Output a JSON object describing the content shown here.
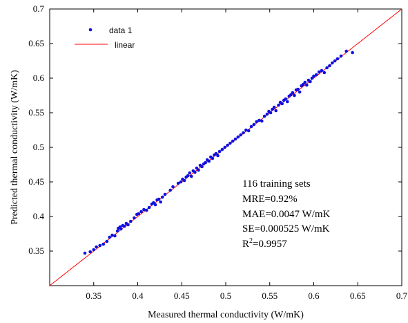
{
  "chart_data": {
    "type": "scatter",
    "xlabel": "Measured thermal conductivity (W/mK)",
    "ylabel": "Predicted thermal conductivity (W/mK)",
    "xlim": [
      0.3,
      0.7
    ],
    "ylim": [
      0.3,
      0.7
    ],
    "x_ticks": [
      0.35,
      0.4,
      0.45,
      0.5,
      0.55,
      0.6,
      0.65,
      0.7
    ],
    "y_ticks": [
      0.35,
      0.4,
      0.45,
      0.5,
      0.55,
      0.6,
      0.65,
      0.7
    ],
    "x_tick_labels": [
      "0.35",
      "0.4",
      "0.45",
      "0.5",
      "0.55",
      "0.6",
      "0.65",
      "0.7"
    ],
    "y_tick_labels": [
      "0.35",
      "0.4",
      "0.45",
      "0.5",
      "0.55",
      "0.6",
      "0.65",
      "0.7"
    ],
    "grid": false,
    "legend_position": "top-left",
    "colors": {
      "points": "#1010e0",
      "fit_line": "#ff0000"
    },
    "series": [
      {
        "name": "data 1",
        "type": "scatter",
        "x": [
          0.34,
          0.346,
          0.35,
          0.353,
          0.357,
          0.361,
          0.365,
          0.368,
          0.371,
          0.374,
          0.377,
          0.378,
          0.38,
          0.381,
          0.383,
          0.385,
          0.387,
          0.389,
          0.392,
          0.396,
          0.399,
          0.401,
          0.404,
          0.407,
          0.41,
          0.413,
          0.416,
          0.418,
          0.42,
          0.422,
          0.424,
          0.426,
          0.428,
          0.431,
          0.437,
          0.44,
          0.446,
          0.449,
          0.451,
          0.453,
          0.455,
          0.457,
          0.459,
          0.461,
          0.463,
          0.465,
          0.467,
          0.469,
          0.471,
          0.473,
          0.475,
          0.477,
          0.479,
          0.481,
          0.483,
          0.485,
          0.487,
          0.489,
          0.491,
          0.493,
          0.496,
          0.499,
          0.502,
          0.505,
          0.508,
          0.511,
          0.514,
          0.517,
          0.52,
          0.523,
          0.526,
          0.529,
          0.532,
          0.535,
          0.538,
          0.541,
          0.544,
          0.547,
          0.549,
          0.551,
          0.553,
          0.555,
          0.557,
          0.56,
          0.562,
          0.564,
          0.566,
          0.568,
          0.57,
          0.572,
          0.574,
          0.576,
          0.578,
          0.58,
          0.582,
          0.584,
          0.586,
          0.588,
          0.59,
          0.592,
          0.594,
          0.596,
          0.598,
          0.6,
          0.603,
          0.606,
          0.609,
          0.612,
          0.615,
          0.618,
          0.621,
          0.624,
          0.627,
          0.631,
          0.637,
          0.644
        ],
        "y": [
          0.347,
          0.349,
          0.352,
          0.356,
          0.358,
          0.36,
          0.364,
          0.37,
          0.373,
          0.372,
          0.379,
          0.383,
          0.385,
          0.382,
          0.387,
          0.386,
          0.39,
          0.388,
          0.393,
          0.398,
          0.403,
          0.404,
          0.407,
          0.41,
          0.409,
          0.413,
          0.418,
          0.42,
          0.417,
          0.424,
          0.425,
          0.421,
          0.428,
          0.432,
          0.438,
          0.443,
          0.448,
          0.45,
          0.454,
          0.452,
          0.457,
          0.459,
          0.463,
          0.458,
          0.466,
          0.464,
          0.47,
          0.467,
          0.474,
          0.472,
          0.476,
          0.478,
          0.482,
          0.48,
          0.486,
          0.484,
          0.489,
          0.491,
          0.488,
          0.494,
          0.497,
          0.5,
          0.503,
          0.506,
          0.509,
          0.512,
          0.515,
          0.518,
          0.521,
          0.525,
          0.524,
          0.53,
          0.533,
          0.537,
          0.539,
          0.538,
          0.545,
          0.548,
          0.552,
          0.55,
          0.555,
          0.558,
          0.553,
          0.561,
          0.565,
          0.563,
          0.568,
          0.57,
          0.566,
          0.574,
          0.576,
          0.579,
          0.575,
          0.583,
          0.584,
          0.58,
          0.589,
          0.591,
          0.594,
          0.59,
          0.597,
          0.595,
          0.6,
          0.603,
          0.605,
          0.609,
          0.611,
          0.608,
          0.615,
          0.618,
          0.622,
          0.625,
          0.628,
          0.632,
          0.639,
          0.637
        ]
      },
      {
        "name": "linear",
        "type": "line",
        "x": [
          0.3,
          0.7
        ],
        "y": [
          0.3,
          0.7
        ]
      }
    ],
    "annotations": [
      "116 training sets",
      "MRE=0.92%",
      "MAE=0.0047 W/mK",
      "SE=0.000525 W/mK",
      "R2=0.9957"
    ],
    "r2_parts": {
      "base": "R",
      "sup": "2",
      "rest": "=0.9957"
    }
  }
}
